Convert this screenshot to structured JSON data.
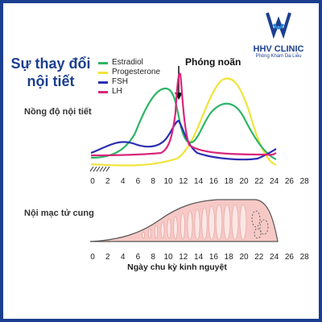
{
  "title": "Sự thay đổi nội tiết",
  "logo": {
    "name": "HHV CLINIC",
    "subtitle": "Phòng Khám Da Liễu"
  },
  "legend": [
    {
      "name": "Estradiol",
      "color": "#2db566"
    },
    {
      "name": "Progesterone",
      "color": "#f0e43a"
    },
    {
      "name": "FSH",
      "color": "#2b2fb3"
    },
    {
      "name": "LH",
      "color": "#d9267a"
    }
  ],
  "ovulation_label": "Phóng noãn",
  "hormone_axis_label": "Nồng độ nội tiết",
  "endometrium_label": "Nội mạc tử cung",
  "x_axis_label": "Ngày chu kỳ kinh nguyệt",
  "x_ticks": [
    "0",
    "2",
    "4",
    "6",
    "8",
    "10",
    "12",
    "14",
    "16",
    "18",
    "20",
    "22",
    "24",
    "26",
    "28"
  ],
  "colors": {
    "accent": "#1b3f8f",
    "endometrium": "#f7c9c6"
  }
}
